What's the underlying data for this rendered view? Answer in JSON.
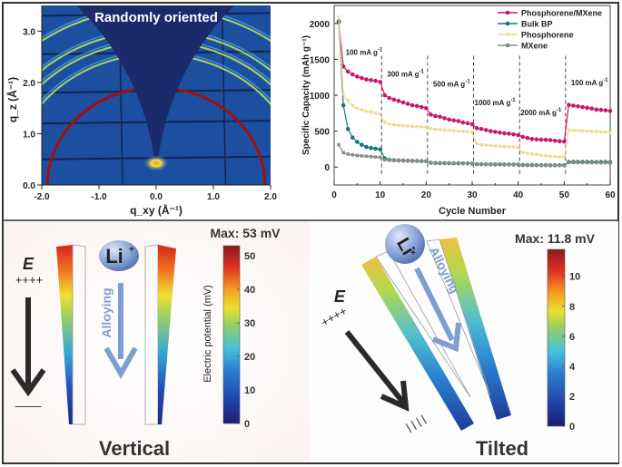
{
  "chart_data": [
    {
      "type": "heatmap",
      "panel": "gisaxs",
      "title": "Randomly oriented",
      "xlabel": "q_xy (Å⁻¹)",
      "ylabel": "q_z (Å⁻¹)",
      "xlim": [
        -2.0,
        2.0
      ],
      "ylim": [
        0.0,
        3.5
      ],
      "xticks": [
        "-2.0",
        "-1.0",
        "0.0",
        "1.0",
        "2.0"
      ],
      "yticks": [
        "0.0",
        "1.0",
        "2.0",
        "3.0"
      ],
      "ring_radii": [
        1.9,
        2.55,
        2.8,
        3.0,
        3.45
      ],
      "strong_ring_radius": 1.9
    },
    {
      "type": "line",
      "panel": "rate-capability",
      "xlabel": "Cycle Number",
      "ylabel": "Specific Capacity (mAh g⁻¹)",
      "xlim": [
        0,
        60
      ],
      "ylim": [
        -250,
        2250
      ],
      "xticks": [
        "0",
        "10",
        "20",
        "30",
        "40",
        "50",
        "60"
      ],
      "yticks": [
        "0",
        "500",
        "1000",
        "1500",
        "2000"
      ],
      "legend_position": "top-right",
      "rate_boundaries": [
        10.3,
        20.3,
        30.3,
        40.3,
        50.3
      ],
      "rate_labels": [
        {
          "text": "100 mA g",
          "x": 2.5,
          "y": 1560
        },
        {
          "text": "300 mA g",
          "x": 11.5,
          "y": 1260
        },
        {
          "text": "500 mA g",
          "x": 21.5,
          "y": 1120
        },
        {
          "text": "1000 mA g",
          "x": 30.5,
          "y": 860
        },
        {
          "text": "2000 mA g",
          "x": 40.5,
          "y": 720
        },
        {
          "text": "100 mA g",
          "x": 51.5,
          "y": 1140
        }
      ],
      "series": [
        {
          "name": "Phosphorene/MXene",
          "color": "#c8186e",
          "marker": "circle",
          "values": [
            2020,
            1400,
            1330,
            1290,
            1260,
            1240,
            1220,
            1210,
            1200,
            1185,
            1000,
            960,
            940,
            920,
            900,
            880,
            860,
            850,
            835,
            820,
            730,
            710,
            700,
            680,
            660,
            650,
            640,
            620,
            610,
            595,
            540,
            530,
            515,
            500,
            490,
            480,
            470,
            465,
            455,
            445,
            420,
            405,
            390,
            385,
            380,
            380,
            375,
            365,
            360,
            355,
            865,
            855,
            845,
            835,
            825,
            815,
            800,
            795,
            790,
            780
          ]
        },
        {
          "name": "Bulk BP",
          "color": "#127a74",
          "marker": "circle",
          "values": [
            2030,
            860,
            530,
            410,
            350,
            310,
            280,
            265,
            255,
            245,
            120,
            100,
            95,
            92,
            90,
            88,
            86,
            84,
            82,
            80,
            60,
            56,
            55,
            54,
            53,
            52,
            52,
            51,
            51,
            50,
            40,
            39,
            38,
            38,
            37,
            37,
            36,
            36,
            35,
            35,
            28,
            27,
            27,
            26,
            26,
            26,
            25,
            25,
            25,
            25,
            70,
            72,
            72,
            71,
            71,
            70,
            70,
            69,
            69,
            68
          ]
        },
        {
          "name": "Phosphorene",
          "color": "#f0d890",
          "marker": "triangle-down",
          "values": [
            2080,
            1010,
            920,
            850,
            810,
            790,
            770,
            760,
            745,
            730,
            620,
            590,
            580,
            575,
            570,
            565,
            560,
            558,
            555,
            550,
            530,
            520,
            515,
            510,
            505,
            500,
            495,
            490,
            485,
            480,
            320,
            305,
            300,
            295,
            290,
            285,
            280,
            278,
            275,
            270,
            200,
            185,
            175,
            170,
            160,
            150,
            145,
            140,
            135,
            130,
            510,
            505,
            500,
            498,
            495,
            490,
            488,
            485,
            482,
            480
          ]
        },
        {
          "name": "MXene",
          "color": "#8a8a8a",
          "marker": "square",
          "values": [
            310,
            200,
            180,
            170,
            160,
            155,
            150,
            145,
            140,
            135,
            100,
            95,
            92,
            90,
            88,
            86,
            84,
            82,
            80,
            78,
            60,
            58,
            57,
            56,
            55,
            54,
            53,
            52,
            51,
            50,
            40,
            39,
            38,
            38,
            37,
            37,
            36,
            36,
            35,
            35,
            28,
            27,
            27,
            26,
            26,
            26,
            25,
            25,
            25,
            25,
            62,
            62,
            61,
            61,
            60,
            60,
            60,
            59,
            59,
            58
          ]
        }
      ]
    },
    {
      "type": "heatmap",
      "panel": "vertical-simulation",
      "title": "Max: 53 mV",
      "caption": "Vertical",
      "colorbar_label": "Electric potential (mV)",
      "colorbar_range": [
        0,
        53
      ],
      "colorbar_ticks": [
        "0",
        "10",
        "20",
        "30",
        "40",
        "50"
      ]
    },
    {
      "type": "heatmap",
      "panel": "tilted-simulation",
      "title": "Max: 11.8 mV",
      "caption": "Tilted",
      "colorbar_range": [
        0,
        11.8
      ],
      "colorbar_ticks": [
        "0",
        "2",
        "4",
        "6",
        "8",
        "10"
      ]
    }
  ],
  "labels": {
    "li_ion": "Li",
    "li_charge": "+",
    "alloying": "Alloying",
    "field": "E",
    "plus_charges": "++++",
    "minus_charges_vertical": "––––",
    "minus_charges_tilted": "| | | |",
    "superscript_neg1": "-1"
  }
}
